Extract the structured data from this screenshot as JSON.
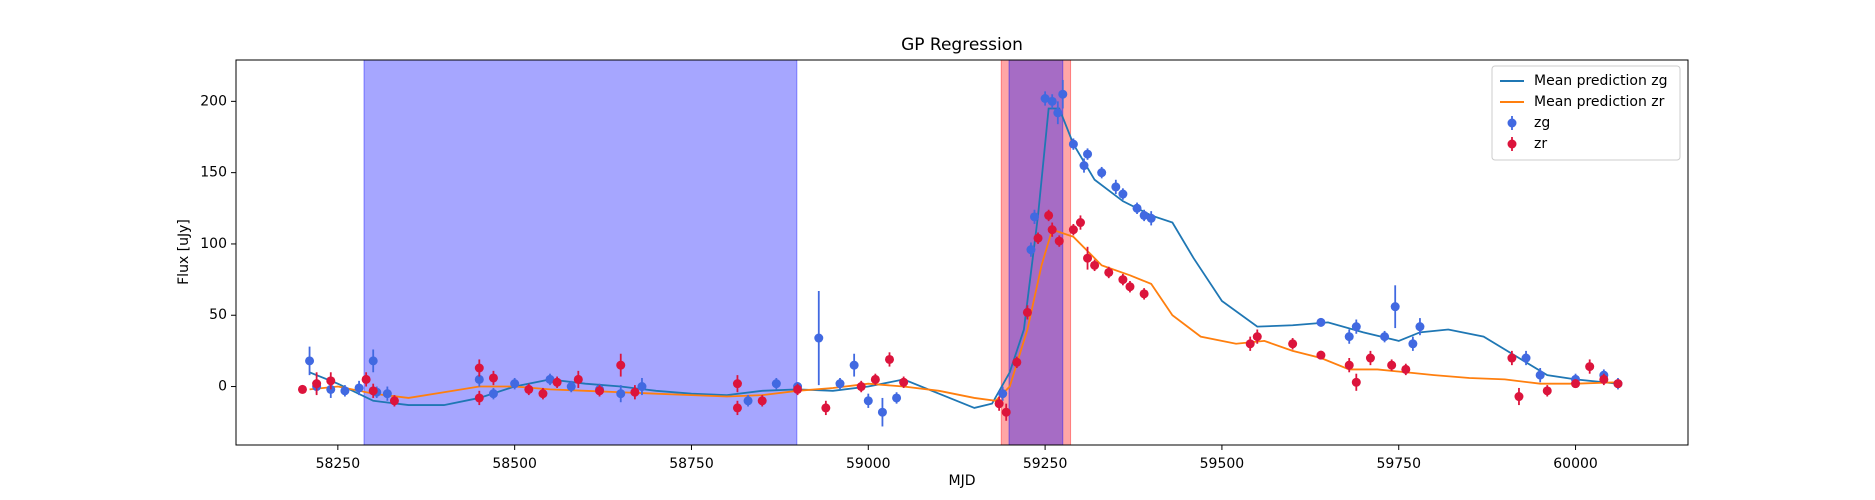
{
  "chart_data": {
    "type": "scatter",
    "title": "GP Regression",
    "x_label": "MJD",
    "y_label": "Flux [uJy]",
    "xlim": [
      58106,
      60159
    ],
    "ylim": [
      -41,
      229
    ],
    "xticks": [
      58250,
      58500,
      58750,
      59000,
      59250,
      59500,
      59750,
      60000
    ],
    "yticks": [
      0,
      50,
      100,
      150,
      200
    ],
    "legend": "upper right",
    "shaded_regions": [
      {
        "xrange": [
          58287,
          58899
        ],
        "color": "#0000ff"
      },
      {
        "xrange": [
          59188,
          59286
        ],
        "color": "#ff0000"
      },
      {
        "xrange": [
          59199,
          59275
        ],
        "color": "#0000ff"
      }
    ],
    "series": [
      {
        "name": "Mean prediction zg",
        "color": "#1f77b4",
        "x": [
          58210,
          58250,
          58300,
          58350,
          58400,
          58450,
          58500,
          58550,
          58600,
          58650,
          58700,
          58750,
          58800,
          58850,
          58900,
          58950,
          59000,
          59050,
          59100,
          59150,
          59175,
          59200,
          59220,
          59240,
          59255,
          59270,
          59290,
          59320,
          59360,
          59400,
          59430,
          59460,
          59500,
          59550,
          59600,
          59650,
          59700,
          59750,
          59780,
          59820,
          59870,
          59920,
          59960,
          60000,
          60060
        ],
        "values": [
          10,
          2,
          -10,
          -13,
          -13,
          -8,
          0,
          5,
          2,
          0,
          -3,
          -5,
          -6,
          -3,
          -2,
          -3,
          0,
          5,
          -5,
          -15,
          -12,
          10,
          40,
          120,
          195,
          195,
          170,
          145,
          130,
          120,
          115,
          90,
          60,
          42,
          43,
          45,
          38,
          32,
          38,
          40,
          35,
          20,
          8,
          5,
          2
        ]
      },
      {
        "name": "Mean prediction zr",
        "color": "#ff7f0e",
        "x": [
          58210,
          58250,
          58300,
          58350,
          58400,
          58450,
          58500,
          58550,
          58600,
          58650,
          58700,
          58750,
          58800,
          58850,
          58900,
          58950,
          59000,
          59050,
          59100,
          59150,
          59180,
          59200,
          59225,
          59245,
          59260,
          59290,
          59330,
          59370,
          59400,
          59430,
          59470,
          59520,
          59560,
          59600,
          59640,
          59680,
          59720,
          59760,
          59800,
          59850,
          59900,
          59950,
          60000,
          60060
        ],
        "values": [
          -2,
          0,
          -5,
          -8,
          -4,
          0,
          0,
          -2,
          -3,
          -4,
          -5,
          -6,
          -7,
          -6,
          -3,
          -1,
          2,
          0,
          -3,
          -8,
          -10,
          0,
          40,
          85,
          110,
          105,
          85,
          78,
          72,
          50,
          35,
          30,
          32,
          25,
          20,
          12,
          12,
          10,
          8,
          6,
          5,
          2,
          2,
          3
        ]
      },
      {
        "name": "zg",
        "color": "#4169e1",
        "x": [
          58210,
          58220,
          58240,
          58260,
          58280,
          58300,
          58305,
          58320,
          58450,
          58470,
          58500,
          58550,
          58580,
          58620,
          58650,
          58680,
          58830,
          58870,
          58900,
          58930,
          58960,
          58980,
          59000,
          59020,
          59040,
          59190,
          59230,
          59235,
          59250,
          59260,
          59268,
          59275,
          59290,
          59305,
          59310,
          59330,
          59350,
          59360,
          59380,
          59390,
          59400,
          59640,
          59680,
          59690,
          59730,
          59745,
          59770,
          59780,
          59930,
          59950,
          60000,
          60040,
          60060
        ],
        "values": [
          18,
          0,
          -2,
          -3,
          -1,
          18,
          -4,
          -5,
          5,
          -5,
          2,
          5,
          0,
          -2,
          -5,
          0,
          -10,
          2,
          0,
          34,
          2,
          15,
          -10,
          -18,
          -8,
          -5,
          96,
          119,
          202,
          200,
          192,
          205,
          170,
          155,
          163,
          150,
          140,
          135,
          125,
          120,
          118,
          45,
          35,
          42,
          35,
          56,
          30,
          42,
          20,
          8,
          5,
          8,
          2
        ],
        "errors": [
          10,
          5,
          6,
          4,
          5,
          8,
          4,
          5,
          5,
          4,
          4,
          4,
          4,
          4,
          6,
          6,
          4,
          4,
          3,
          33,
          4,
          8,
          5,
          10,
          4,
          5,
          5,
          5,
          5,
          5,
          8,
          10,
          4,
          5,
          4,
          4,
          5,
          4,
          4,
          4,
          5,
          3,
          5,
          5,
          4,
          15,
          5,
          6,
          5,
          5,
          4,
          4,
          4
        ]
      },
      {
        "name": "zr",
        "color": "#dc143c",
        "x": [
          58200,
          58220,
          58240,
          58290,
          58300,
          58330,
          58450,
          58450,
          58470,
          58520,
          58540,
          58560,
          58590,
          58620,
          58650,
          58670,
          58815,
          58815,
          58850,
          58900,
          58940,
          58990,
          59010,
          59030,
          59050,
          59185,
          59195,
          59210,
          59225,
          59240,
          59255,
          59260,
          59270,
          59290,
          59300,
          59310,
          59320,
          59340,
          59360,
          59370,
          59390,
          59540,
          59550,
          59600,
          59640,
          59680,
          59690,
          59710,
          59740,
          59760,
          59910,
          59920,
          59960,
          60000,
          60020,
          60040,
          60060
        ],
        "values": [
          -2,
          2,
          4,
          5,
          -3,
          -10,
          13,
          -8,
          6,
          -2,
          -5,
          3,
          5,
          -3,
          15,
          -4,
          2,
          -15,
          -10,
          -2,
          -15,
          0,
          5,
          19,
          3,
          -12,
          -18,
          17,
          52,
          104,
          120,
          110,
          102,
          110,
          115,
          90,
          85,
          80,
          75,
          70,
          65,
          30,
          35,
          30,
          22,
          15,
          3,
          20,
          15,
          12,
          20,
          -7,
          -3,
          2,
          14,
          5,
          2
        ],
        "errors": [
          3,
          8,
          6,
          5,
          5,
          4,
          6,
          5,
          5,
          4,
          4,
          4,
          6,
          4,
          8,
          5,
          6,
          5,
          4,
          4,
          5,
          4,
          4,
          5,
          4,
          5,
          6,
          4,
          5,
          4,
          4,
          5,
          4,
          4,
          5,
          8,
          4,
          4,
          4,
          4,
          4,
          5,
          5,
          4,
          3,
          5,
          6,
          5,
          4,
          4,
          5,
          6,
          4,
          3,
          5,
          4,
          3
        ]
      }
    ]
  }
}
